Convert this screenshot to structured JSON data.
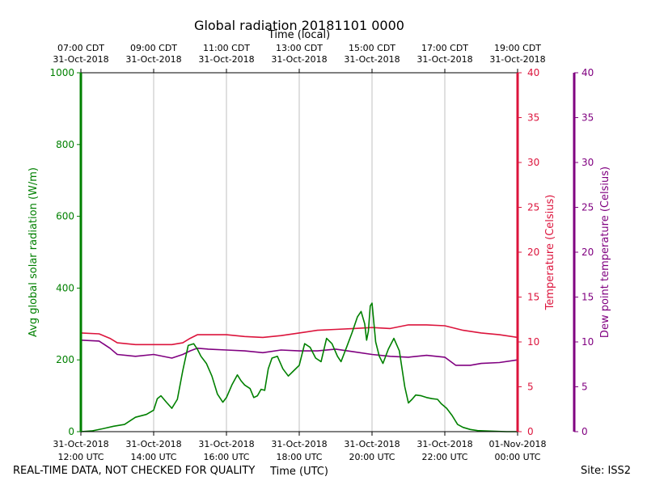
{
  "chart_data": {
    "type": "line",
    "title": "Global radiation 20181101 0000",
    "top_axis_label": "Time (local)",
    "xlabel": "Time (UTC)",
    "x_ticks_top": [
      {
        "line1": "07:00 CDT",
        "line2": "31-Oct-2018"
      },
      {
        "line1": "09:00 CDT",
        "line2": "31-Oct-2018"
      },
      {
        "line1": "11:00 CDT",
        "line2": "31-Oct-2018"
      },
      {
        "line1": "13:00 CDT",
        "line2": "31-Oct-2018"
      },
      {
        "line1": "15:00 CDT",
        "line2": "31-Oct-2018"
      },
      {
        "line1": "17:00 CDT",
        "line2": "31-Oct-2018"
      },
      {
        "line1": "19:00 CDT",
        "line2": "31-Oct-2018"
      }
    ],
    "x_ticks_bottom": [
      {
        "line1": "31-Oct-2018",
        "line2": "12:00 UTC"
      },
      {
        "line1": "31-Oct-2018",
        "line2": "14:00 UTC"
      },
      {
        "line1": "31-Oct-2018",
        "line2": "16:00 UTC"
      },
      {
        "line1": "31-Oct-2018",
        "line2": "18:00 UTC"
      },
      {
        "line1": "31-Oct-2018",
        "line2": "20:00 UTC"
      },
      {
        "line1": "31-Oct-2018",
        "line2": "22:00 UTC"
      },
      {
        "line1": "01-Nov-2018",
        "line2": "00:00 UTC"
      }
    ],
    "x_range_hours_utc": [
      12,
      24
    ],
    "y_left": {
      "label": "Avg global solar radiation (W/m)",
      "range": [
        0,
        1000
      ],
      "ticks": [
        0,
        200,
        400,
        600,
        800,
        1000
      ],
      "color": "#008000"
    },
    "y_right1": {
      "label": "Temperature (Celsius)",
      "range": [
        0,
        40
      ],
      "ticks": [
        0,
        5,
        10,
        15,
        20,
        25,
        30,
        35,
        40
      ],
      "color": "#dc143c"
    },
    "y_right2": {
      "label": "Dew point temperature (Celsius)",
      "range": [
        0,
        40
      ],
      "ticks": [
        0,
        5,
        10,
        15,
        20,
        25,
        30,
        35,
        40
      ],
      "color": "#800080"
    },
    "series": [
      {
        "name": "Avg global solar radiation",
        "axis": "left",
        "color": "#008000",
        "x": [
          12.0,
          12.3,
          12.6,
          12.9,
          13.2,
          13.5,
          13.8,
          14.0,
          14.1,
          14.2,
          14.35,
          14.5,
          14.65,
          14.8,
          14.95,
          15.1,
          15.2,
          15.3,
          15.45,
          15.6,
          15.75,
          15.9,
          16.0,
          16.15,
          16.3,
          16.4,
          16.5,
          16.65,
          16.75,
          16.85,
          16.95,
          17.05,
          17.15,
          17.25,
          17.4,
          17.55,
          17.7,
          17.85,
          18.0,
          18.15,
          18.3,
          18.45,
          18.6,
          18.75,
          18.9,
          19.05,
          19.15,
          19.3,
          19.45,
          19.6,
          19.7,
          19.8,
          19.85,
          19.9,
          19.95,
          20.0,
          20.1,
          20.2,
          20.3,
          20.45,
          20.6,
          20.75,
          20.9,
          21.0,
          21.1,
          21.2,
          21.35,
          21.5,
          21.65,
          21.8,
          21.9,
          22.05,
          22.2,
          22.35,
          22.5,
          22.7,
          22.9,
          23.1,
          23.4,
          23.7,
          24.0
        ],
        "values": [
          0,
          2,
          8,
          15,
          20,
          40,
          48,
          60,
          92,
          100,
          82,
          65,
          90,
          170,
          240,
          245,
          230,
          210,
          190,
          155,
          105,
          82,
          95,
          130,
          158,
          142,
          130,
          120,
          95,
          100,
          118,
          115,
          175,
          205,
          210,
          175,
          155,
          170,
          185,
          245,
          235,
          205,
          195,
          260,
          245,
          210,
          195,
          235,
          275,
          320,
          335,
          300,
          255,
          280,
          350,
          358,
          250,
          210,
          190,
          230,
          260,
          225,
          125,
          80,
          90,
          102,
          100,
          95,
          92,
          90,
          78,
          65,
          45,
          20,
          12,
          6,
          3,
          2,
          1,
          0,
          0
        ]
      },
      {
        "name": "Temperature",
        "axis": "right1",
        "color": "#dc143c",
        "x": [
          12.0,
          12.5,
          12.8,
          13.0,
          13.5,
          14.0,
          14.5,
          14.8,
          15.0,
          15.2,
          15.5,
          16.0,
          16.5,
          17.0,
          17.5,
          18.0,
          18.5,
          19.0,
          19.5,
          20.0,
          20.5,
          21.0,
          21.5,
          22.0,
          22.5,
          23.0,
          23.5,
          24.0
        ],
        "values": [
          11.0,
          10.9,
          10.4,
          9.9,
          9.7,
          9.7,
          9.7,
          9.9,
          10.4,
          10.8,
          10.8,
          10.8,
          10.6,
          10.5,
          10.7,
          11.0,
          11.3,
          11.4,
          11.5,
          11.6,
          11.5,
          11.9,
          11.9,
          11.8,
          11.3,
          11.0,
          10.8,
          10.5
        ]
      },
      {
        "name": "Dew point temperature",
        "axis": "right2",
        "color": "#800080",
        "x": [
          12.0,
          12.5,
          12.8,
          13.0,
          13.5,
          14.0,
          14.5,
          14.8,
          15.0,
          15.2,
          15.5,
          16.0,
          16.5,
          17.0,
          17.5,
          18.0,
          18.5,
          19.0,
          19.5,
          20.0,
          20.5,
          21.0,
          21.5,
          22.0,
          22.3,
          22.7,
          23.0,
          23.5,
          24.0
        ],
        "values": [
          10.2,
          10.1,
          9.3,
          8.6,
          8.4,
          8.6,
          8.2,
          8.6,
          9.0,
          9.3,
          9.2,
          9.1,
          9.0,
          8.8,
          9.1,
          9.0,
          9.0,
          9.2,
          8.9,
          8.6,
          8.4,
          8.3,
          8.5,
          8.3,
          7.4,
          7.4,
          7.6,
          7.7,
          8.0
        ]
      }
    ]
  },
  "footer": {
    "quality_note": "REAL-TIME DATA, NOT CHECKED FOR QUALITY",
    "site": "Site: ISS2"
  }
}
